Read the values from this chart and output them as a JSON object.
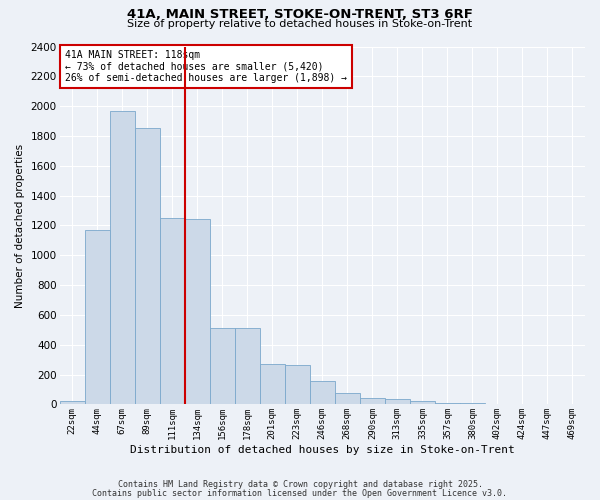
{
  "title1": "41A, MAIN STREET, STOKE-ON-TRENT, ST3 6RF",
  "title2": "Size of property relative to detached houses in Stoke-on-Trent",
  "xlabel": "Distribution of detached houses by size in Stoke-on-Trent",
  "ylabel": "Number of detached properties",
  "categories": [
    "22sqm",
    "44sqm",
    "67sqm",
    "89sqm",
    "111sqm",
    "134sqm",
    "156sqm",
    "178sqm",
    "201sqm",
    "223sqm",
    "246sqm",
    "268sqm",
    "290sqm",
    "313sqm",
    "335sqm",
    "357sqm",
    "380sqm",
    "402sqm",
    "424sqm",
    "447sqm",
    "469sqm"
  ],
  "values": [
    20,
    1170,
    1970,
    1855,
    1250,
    1240,
    515,
    510,
    270,
    265,
    155,
    75,
    40,
    38,
    25,
    10,
    8,
    5,
    4,
    2,
    2
  ],
  "bar_color": "#ccd9e8",
  "bar_edgecolor": "#7aa8cc",
  "vline_color": "#cc0000",
  "vline_xidx": 4.5,
  "annotation_line1": "41A MAIN STREET: 118sqm",
  "annotation_line2": "← 73% of detached houses are smaller (5,420)",
  "annotation_line3": "26% of semi-detached houses are larger (1,898) →",
  "annotation_box_facecolor": "#ffffff",
  "annotation_box_edgecolor": "#cc0000",
  "ylim": [
    0,
    2400
  ],
  "yticks": [
    0,
    200,
    400,
    600,
    800,
    1000,
    1200,
    1400,
    1600,
    1800,
    2000,
    2200,
    2400
  ],
  "footer1": "Contains HM Land Registry data © Crown copyright and database right 2025.",
  "footer2": "Contains public sector information licensed under the Open Government Licence v3.0.",
  "bg_color": "#edf1f7"
}
